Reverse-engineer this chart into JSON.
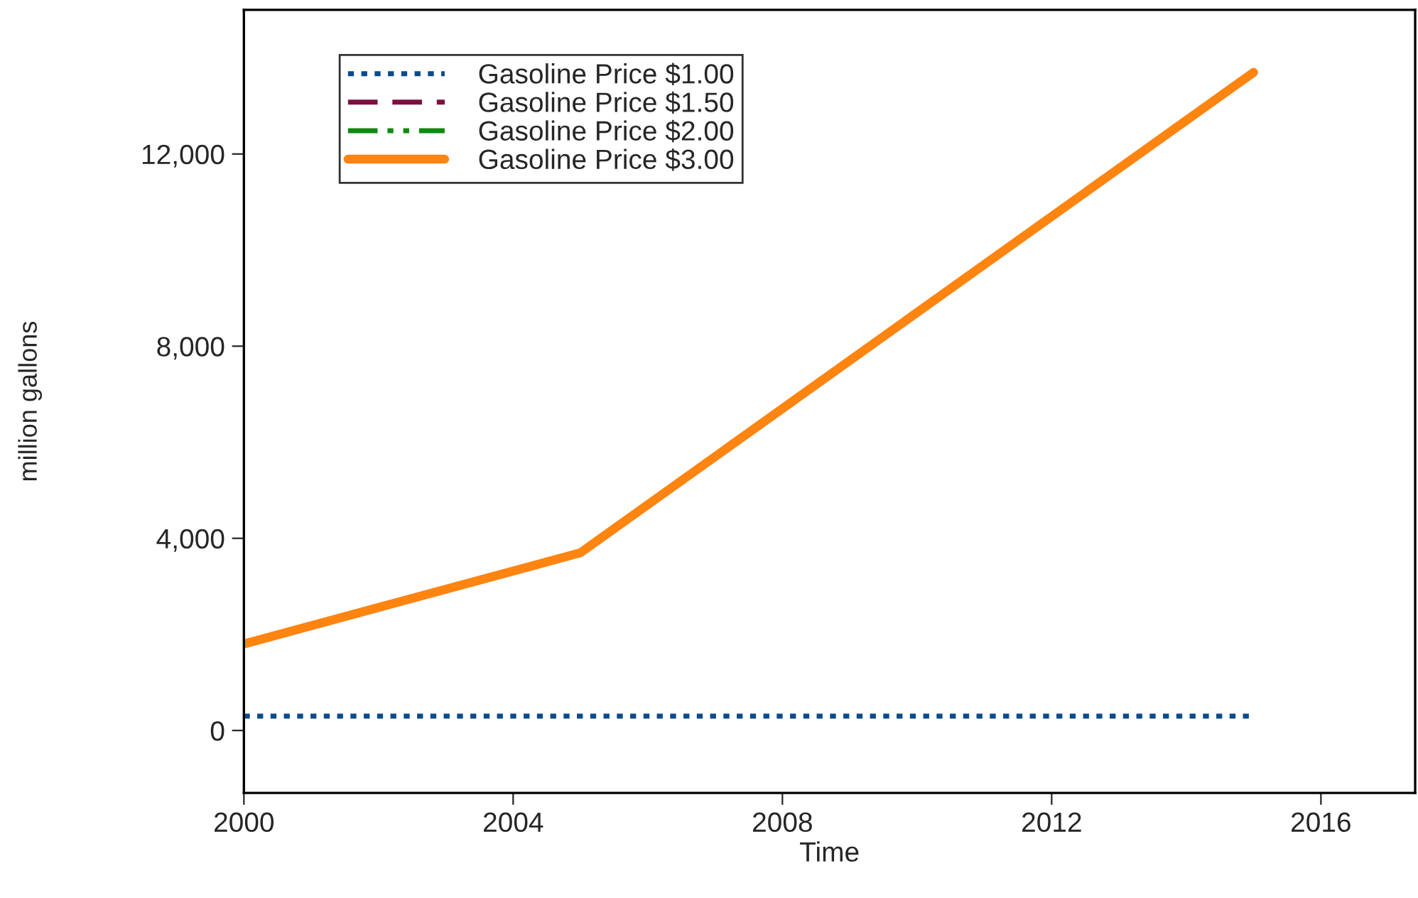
{
  "chart_data": {
    "type": "line",
    "xlabel": "Time",
    "ylabel": "million gallons",
    "x": [
      2000,
      2005,
      2015
    ],
    "series": [
      {
        "name": "Gasoline Price $1.00",
        "color": "#0b4a8b",
        "line_style": "dotted",
        "values": [
          300,
          300,
          300
        ]
      },
      {
        "name": "Gasoline Price $1.50",
        "color": "#7b1040",
        "line_style": "dashed",
        "values": [
          null,
          null,
          null
        ]
      },
      {
        "name": "Gasoline Price $2.00",
        "color": "#108a10",
        "line_style": "dashdot",
        "values": [
          null,
          null,
          null
        ]
      },
      {
        "name": "Gasoline Price $3.00",
        "color": "#ff8410",
        "line_style": "solid",
        "values": [
          1800,
          3700,
          13700
        ]
      }
    ],
    "xlim": [
      2000,
      2017.4
    ],
    "xticks": [
      2000,
      2004,
      2008,
      2012,
      2016
    ],
    "ylim": [
      -1300,
      15000
    ],
    "yticks": [
      {
        "value": 0,
        "label": "0"
      },
      {
        "value": 4000,
        "label": "4,000"
      },
      {
        "value": 8000,
        "label": "8,000"
      },
      {
        "value": 12000,
        "label": "12,000"
      }
    ],
    "grid": false,
    "legend": "top left",
    "marker": "none"
  }
}
